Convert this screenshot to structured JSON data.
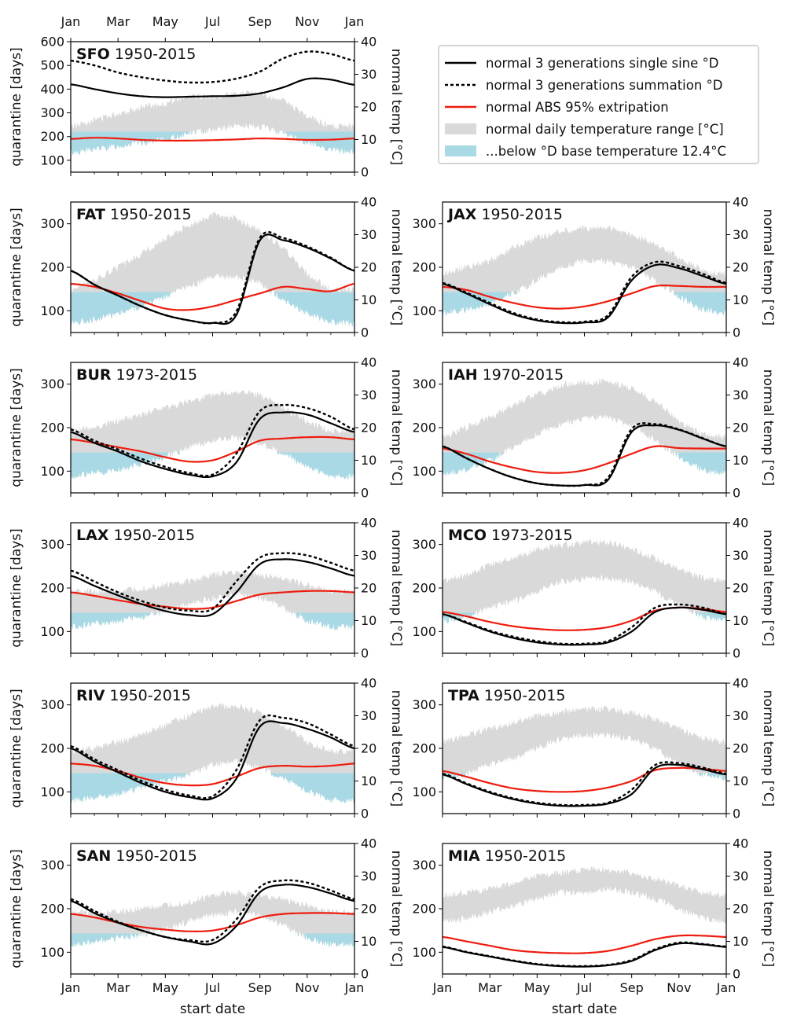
{
  "colors": {
    "single_sine": "#000000",
    "summation": "#000000",
    "abs95": "#ee1c0e",
    "temp_range": "#d9d9d9",
    "below_base": "#a9d9e4"
  },
  "legend": [
    {
      "key": "single_sine",
      "label": "normal 3 generations single sine °D"
    },
    {
      "key": "summation",
      "label": "normal 3 generations summation °D"
    },
    {
      "key": "abs95",
      "label": "normal ABS 95% extripation"
    },
    {
      "key": "temp_range",
      "label": "normal daily temperature range [°C]"
    },
    {
      "key": "below_base",
      "label": "...below °D base temperature 12.4°C"
    }
  ],
  "axes": {
    "ylabel_left": "quarantine [days]",
    "ylabel_right": "normal temp [°C]",
    "xlabel": "start date",
    "x_ticks": [
      "Jan",
      "Mar",
      "May",
      "Jul",
      "Sep",
      "Nov",
      "Jan"
    ],
    "base_temp_c": 12.4
  },
  "chart_data": [
    {
      "type": "line",
      "code": "SFO",
      "years": "1950-2015",
      "ylim": [
        50,
        600
      ],
      "yticks": [
        100,
        200,
        300,
        400,
        500,
        600
      ],
      "temp_lim": [
        0,
        40
      ],
      "temp_ticks": [
        0,
        10,
        20,
        30,
        40
      ],
      "x_months": [
        0,
        1,
        2,
        3,
        4,
        5,
        6,
        7,
        8,
        9,
        10,
        11,
        12
      ],
      "single_sine": [
        420,
        400,
        382,
        370,
        366,
        368,
        370,
        372,
        382,
        408,
        443,
        440,
        418
      ],
      "summation": [
        520,
        500,
        470,
        450,
        436,
        428,
        430,
        444,
        474,
        530,
        558,
        548,
        520
      ],
      "abs95": [
        190,
        195,
        192,
        186,
        183,
        183,
        185,
        188,
        192,
        190,
        186,
        187,
        192
      ],
      "temp_min": [
        6,
        7,
        8,
        9,
        10,
        12,
        13,
        14,
        14,
        12,
        9,
        7,
        6
      ],
      "temp_max": [
        14,
        16,
        18,
        20,
        21,
        23,
        23,
        24,
        24,
        22,
        17,
        14,
        14
      ]
    },
    {
      "type": "line",
      "code": "FAT",
      "years": "1950-2015",
      "ylim": [
        50,
        350
      ],
      "yticks": [
        100,
        200,
        300
      ],
      "temp_lim": [
        0,
        40
      ],
      "temp_ticks": [
        0,
        10,
        20,
        30,
        40
      ],
      "x_months": [
        0,
        1,
        2,
        3,
        4,
        5,
        6,
        7,
        8,
        9,
        10,
        11,
        12
      ],
      "single_sine": [
        192,
        160,
        135,
        110,
        90,
        78,
        72,
        90,
        262,
        262,
        245,
        220,
        192
      ],
      "summation": [
        192,
        160,
        135,
        110,
        90,
        78,
        72,
        98,
        268,
        267,
        248,
        222,
        192
      ],
      "abs95": [
        162,
        155,
        140,
        122,
        105,
        102,
        110,
        125,
        140,
        155,
        150,
        145,
        162
      ],
      "temp_min": [
        3,
        4,
        6,
        8,
        11,
        14,
        17,
        17,
        15,
        10,
        6,
        3,
        3
      ],
      "temp_max": [
        13,
        16,
        20,
        24,
        29,
        33,
        36,
        35,
        31,
        26,
        18,
        13,
        13
      ]
    },
    {
      "type": "line",
      "code": "JAX",
      "years": "1950-2015",
      "ylim": [
        50,
        350
      ],
      "yticks": [
        100,
        200,
        300
      ],
      "temp_lim": [
        0,
        40
      ],
      "temp_ticks": [
        0,
        10,
        20,
        30,
        40
      ],
      "x_months": [
        0,
        1,
        2,
        3,
        4,
        5,
        6,
        7,
        8,
        9,
        10,
        11,
        12
      ],
      "single_sine": [
        162,
        140,
        115,
        92,
        78,
        72,
        73,
        85,
        170,
        205,
        198,
        180,
        162
      ],
      "summation": [
        164,
        142,
        118,
        95,
        80,
        74,
        75,
        90,
        178,
        212,
        203,
        185,
        164
      ],
      "abs95": [
        155,
        148,
        132,
        118,
        108,
        105,
        110,
        122,
        140,
        157,
        157,
        155,
        155
      ],
      "temp_min": [
        6,
        7,
        9,
        12,
        16,
        20,
        22,
        22,
        20,
        16,
        11,
        7,
        6
      ],
      "temp_max": [
        18,
        20,
        22,
        26,
        29,
        31,
        32,
        32,
        30,
        27,
        23,
        19,
        18
      ]
    },
    {
      "type": "line",
      "code": "BUR",
      "years": "1973-2015",
      "ylim": [
        50,
        350
      ],
      "yticks": [
        100,
        200,
        300
      ],
      "temp_lim": [
        0,
        40
      ],
      "temp_ticks": [
        0,
        10,
        20,
        30,
        40
      ],
      "x_months": [
        0,
        1,
        2,
        3,
        4,
        5,
        6,
        7,
        8,
        9,
        10,
        11,
        12
      ],
      "single_sine": [
        190,
        165,
        145,
        122,
        105,
        92,
        88,
        120,
        220,
        235,
        230,
        210,
        190
      ],
      "summation": [
        196,
        170,
        150,
        128,
        110,
        96,
        92,
        140,
        238,
        252,
        245,
        225,
        196
      ],
      "abs95": [
        173,
        165,
        155,
        145,
        132,
        122,
        125,
        145,
        170,
        175,
        178,
        178,
        173
      ],
      "temp_min": [
        5,
        6,
        7,
        9,
        11,
        14,
        16,
        17,
        15,
        12,
        8,
        5,
        5
      ],
      "temp_max": [
        19,
        20,
        22,
        24,
        26,
        28,
        30,
        31,
        30,
        26,
        22,
        19,
        19
      ]
    },
    {
      "type": "line",
      "code": "IAH",
      "years": "1970-2015",
      "ylim": [
        50,
        350
      ],
      "yticks": [
        100,
        200,
        300
      ],
      "temp_lim": [
        0,
        40
      ],
      "temp_ticks": [
        0,
        10,
        20,
        30,
        40
      ],
      "x_months": [
        0,
        1,
        2,
        3,
        4,
        5,
        6,
        7,
        8,
        9,
        10,
        11,
        12
      ],
      "single_sine": [
        157,
        130,
        105,
        85,
        72,
        67,
        68,
        80,
        190,
        205,
        195,
        175,
        157
      ],
      "summation": [
        157,
        130,
        105,
        85,
        72,
        67,
        68,
        85,
        197,
        208,
        196,
        176,
        157
      ],
      "abs95": [
        152,
        140,
        122,
        108,
        98,
        96,
        102,
        118,
        140,
        157,
        153,
        152,
        152
      ],
      "temp_min": [
        6,
        7,
        10,
        14,
        18,
        21,
        23,
        23,
        21,
        16,
        11,
        7,
        6
      ],
      "temp_max": [
        17,
        20,
        23,
        27,
        30,
        33,
        34,
        34,
        32,
        28,
        22,
        18,
        17
      ]
    },
    {
      "type": "line",
      "code": "LAX",
      "years": "1950-2015",
      "ylim": [
        50,
        350
      ],
      "yticks": [
        100,
        200,
        300
      ],
      "temp_lim": [
        0,
        40
      ],
      "temp_ticks": [
        0,
        10,
        20,
        30,
        40
      ],
      "x_months": [
        0,
        1,
        2,
        3,
        4,
        5,
        6,
        7,
        8,
        9,
        10,
        11,
        12
      ],
      "single_sine": [
        228,
        205,
        183,
        163,
        147,
        138,
        140,
        190,
        255,
        266,
        260,
        245,
        228
      ],
      "summation": [
        240,
        215,
        190,
        170,
        155,
        148,
        152,
        215,
        270,
        280,
        275,
        258,
        240
      ],
      "abs95": [
        190,
        182,
        172,
        163,
        157,
        152,
        155,
        170,
        185,
        190,
        193,
        193,
        190
      ],
      "temp_min": [
        8,
        9,
        10,
        11,
        13,
        15,
        17,
        18,
        17,
        14,
        10,
        8,
        8
      ],
      "temp_max": [
        19,
        19,
        19,
        20,
        21,
        22,
        24,
        25,
        24,
        23,
        21,
        19,
        19
      ]
    },
    {
      "type": "line",
      "code": "MCO",
      "years": "1973-2015",
      "ylim": [
        50,
        350
      ],
      "yticks": [
        100,
        200,
        300
      ],
      "temp_lim": [
        0,
        40
      ],
      "temp_ticks": [
        0,
        10,
        20,
        30,
        40
      ],
      "x_months": [
        0,
        1,
        2,
        3,
        4,
        5,
        6,
        7,
        8,
        9,
        10,
        11,
        12
      ],
      "single_sine": [
        140,
        120,
        100,
        85,
        75,
        70,
        70,
        75,
        100,
        145,
        155,
        150,
        140
      ],
      "summation": [
        140,
        122,
        102,
        88,
        78,
        72,
        72,
        78,
        110,
        155,
        162,
        155,
        140
      ],
      "abs95": [
        145,
        135,
        122,
        112,
        106,
        103,
        104,
        110,
        125,
        148,
        155,
        152,
        145
      ],
      "temp_min": [
        10,
        11,
        14,
        16,
        19,
        22,
        23,
        23,
        22,
        19,
        15,
        11,
        10
      ],
      "temp_max": [
        22,
        24,
        27,
        29,
        32,
        33,
        34,
        34,
        32,
        29,
        26,
        23,
        22
      ]
    },
    {
      "type": "line",
      "code": "RIV",
      "years": "1950-2015",
      "ylim": [
        50,
        350
      ],
      "yticks": [
        100,
        200,
        300
      ],
      "temp_lim": [
        0,
        40
      ],
      "temp_ticks": [
        0,
        10,
        20,
        30,
        40
      ],
      "x_months": [
        0,
        1,
        2,
        3,
        4,
        5,
        6,
        7,
        8,
        9,
        10,
        11,
        12
      ],
      "single_sine": [
        200,
        170,
        145,
        120,
        100,
        88,
        85,
        130,
        250,
        258,
        245,
        225,
        200
      ],
      "summation": [
        205,
        175,
        150,
        125,
        105,
        92,
        90,
        150,
        265,
        270,
        258,
        232,
        205
      ],
      "abs95": [
        165,
        160,
        148,
        132,
        120,
        115,
        118,
        135,
        155,
        160,
        158,
        160,
        165
      ],
      "temp_min": [
        4,
        5,
        6,
        8,
        10,
        12,
        15,
        16,
        14,
        11,
        7,
        4,
        4
      ],
      "temp_max": [
        19,
        20,
        22,
        24,
        27,
        30,
        33,
        33,
        31,
        27,
        22,
        19,
        19
      ]
    },
    {
      "type": "line",
      "code": "TPA",
      "years": "1950-2015",
      "ylim": [
        50,
        350
      ],
      "yticks": [
        100,
        200,
        300
      ],
      "temp_lim": [
        0,
        40
      ],
      "temp_ticks": [
        0,
        10,
        20,
        30,
        40
      ],
      "x_months": [
        0,
        1,
        2,
        3,
        4,
        5,
        6,
        7,
        8,
        9,
        10,
        11,
        12
      ],
      "single_sine": [
        140,
        118,
        98,
        83,
        73,
        68,
        68,
        73,
        95,
        155,
        162,
        152,
        140
      ],
      "summation": [
        142,
        120,
        100,
        85,
        75,
        70,
        70,
        75,
        105,
        162,
        166,
        156,
        142
      ],
      "abs95": [
        148,
        135,
        120,
        108,
        102,
        100,
        102,
        110,
        125,
        150,
        155,
        153,
        148
      ],
      "temp_min": [
        11,
        12,
        15,
        17,
        20,
        23,
        24,
        24,
        23,
        20,
        15,
        12,
        11
      ],
      "temp_max": [
        22,
        24,
        26,
        28,
        30,
        31,
        32,
        32,
        31,
        29,
        26,
        23,
        22
      ]
    },
    {
      "type": "line",
      "code": "SAN",
      "years": "1950-2015",
      "ylim": [
        50,
        350
      ],
      "yticks": [
        100,
        200,
        300
      ],
      "temp_lim": [
        0,
        40
      ],
      "temp_ticks": [
        0,
        10,
        20,
        30,
        40
      ],
      "x_months": [
        0,
        1,
        2,
        3,
        4,
        5,
        6,
        7,
        8,
        9,
        10,
        11,
        12
      ],
      "single_sine": [
        218,
        190,
        168,
        150,
        135,
        125,
        120,
        160,
        238,
        255,
        250,
        235,
        218
      ],
      "summation": [
        222,
        195,
        170,
        150,
        135,
        128,
        128,
        175,
        250,
        265,
        260,
        242,
        222
      ],
      "abs95": [
        188,
        180,
        168,
        158,
        152,
        148,
        150,
        162,
        180,
        188,
        190,
        190,
        188
      ],
      "temp_min": [
        9,
        10,
        11,
        12,
        14,
        16,
        18,
        19,
        18,
        15,
        11,
        9,
        9
      ],
      "temp_max": [
        19,
        19,
        19,
        20,
        21,
        22,
        24,
        25,
        24,
        23,
        21,
        19,
        19
      ]
    },
    {
      "type": "line",
      "code": "MIA",
      "years": "1950-2015",
      "ylim": [
        50,
        350
      ],
      "yticks": [
        100,
        200,
        300
      ],
      "temp_lim": [
        0,
        40
      ],
      "temp_ticks": [
        0,
        10,
        20,
        30,
        40
      ],
      "x_months": [
        0,
        1,
        2,
        3,
        4,
        5,
        6,
        7,
        8,
        9,
        10,
        11,
        12
      ],
      "single_sine": [
        112,
        100,
        90,
        80,
        72,
        68,
        67,
        70,
        80,
        105,
        120,
        118,
        112
      ],
      "summation": [
        113,
        101,
        91,
        81,
        73,
        69,
        68,
        71,
        82,
        107,
        122,
        119,
        113
      ],
      "abs95": [
        135,
        125,
        115,
        105,
        100,
        98,
        98,
        103,
        115,
        130,
        138,
        138,
        135
      ],
      "temp_min": [
        16,
        17,
        19,
        21,
        23,
        25,
        25,
        26,
        25,
        23,
        20,
        17,
        16
      ],
      "temp_max": [
        24,
        25,
        26,
        28,
        30,
        31,
        32,
        32,
        31,
        29,
        27,
        25,
        24
      ]
    }
  ]
}
